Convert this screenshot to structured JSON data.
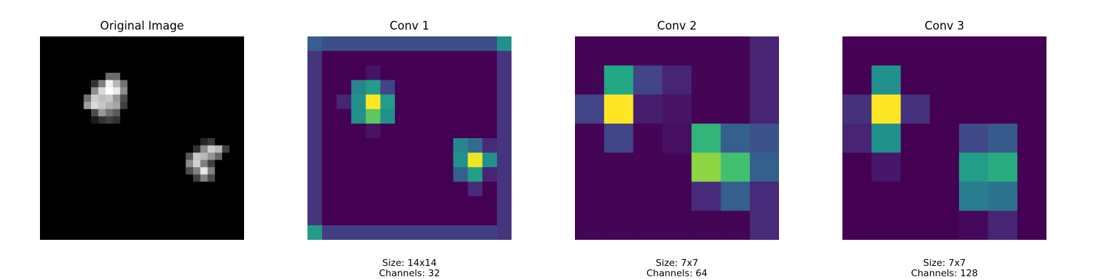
{
  "chart_data": [
    {
      "type": "heatmap",
      "title": "Original Image",
      "colormap": "gray",
      "grid": false,
      "size_label": "",
      "channels_label": "",
      "rows": 28,
      "cols": 28,
      "cells": [
        [
          5,
          9,
          0.42
        ],
        [
          5,
          10,
          0.42
        ],
        [
          6,
          7,
          0.2
        ],
        [
          6,
          8,
          0.5
        ],
        [
          6,
          9,
          0.95
        ],
        [
          6,
          10,
          0.72
        ],
        [
          6,
          11,
          0.45
        ],
        [
          7,
          7,
          0.55
        ],
        [
          7,
          8,
          0.85
        ],
        [
          7,
          9,
          1.0
        ],
        [
          7,
          10,
          0.92
        ],
        [
          7,
          11,
          0.55
        ],
        [
          8,
          6,
          0.45
        ],
        [
          8,
          7,
          0.8
        ],
        [
          8,
          8,
          0.75
        ],
        [
          8,
          9,
          0.78
        ],
        [
          8,
          10,
          0.6
        ],
        [
          8,
          11,
          0.3
        ],
        [
          9,
          6,
          0.62
        ],
        [
          9,
          7,
          0.85
        ],
        [
          9,
          8,
          0.78
        ],
        [
          9,
          9,
          0.7
        ],
        [
          9,
          10,
          0.65
        ],
        [
          9,
          11,
          0.25
        ],
        [
          10,
          7,
          0.3
        ],
        [
          10,
          8,
          0.6
        ],
        [
          10,
          9,
          0.45
        ],
        [
          10,
          10,
          0.35
        ],
        [
          11,
          7,
          0.1
        ],
        [
          11,
          8,
          0.2
        ],
        [
          11,
          9,
          0.25
        ],
        [
          11,
          10,
          0.2
        ],
        [
          14,
          22,
          0.15
        ],
        [
          14,
          23,
          0.22
        ],
        [
          15,
          21,
          0.2
        ],
        [
          15,
          22,
          0.55
        ],
        [
          15,
          23,
          0.8
        ],
        [
          15,
          24,
          0.72
        ],
        [
          15,
          25,
          0.25
        ],
        [
          16,
          20,
          0.35
        ],
        [
          16,
          21,
          0.78
        ],
        [
          16,
          22,
          0.72
        ],
        [
          16,
          23,
          0.58
        ],
        [
          16,
          24,
          0.4
        ],
        [
          17,
          20,
          0.55
        ],
        [
          17,
          21,
          0.82
        ],
        [
          17,
          22,
          0.5
        ],
        [
          17,
          23,
          0.25
        ],
        [
          18,
          20,
          0.3
        ],
        [
          18,
          21,
          0.5
        ],
        [
          18,
          22,
          0.9
        ],
        [
          18,
          23,
          0.5
        ],
        [
          19,
          21,
          0.25
        ],
        [
          19,
          22,
          0.5
        ],
        [
          19,
          23,
          0.3
        ]
      ]
    },
    {
      "type": "heatmap",
      "title": "Conv 1",
      "colormap": "viridis",
      "grid": false,
      "size_label": "Size: 14x14",
      "channels_label": "Channels: 32",
      "rows": 14,
      "cols": 14,
      "values": [
        [
          0.3,
          0.24,
          0.24,
          0.24,
          0.24,
          0.24,
          0.24,
          0.24,
          0.24,
          0.24,
          0.24,
          0.24,
          0.24,
          0.5
        ],
        [
          0.15,
          0.0,
          0.0,
          0.0,
          0.0,
          0.0,
          0.0,
          0.0,
          0.0,
          0.0,
          0.0,
          0.0,
          0.0,
          0.15
        ],
        [
          0.15,
          0.0,
          0.0,
          0.0,
          0.05,
          0.0,
          0.0,
          0.0,
          0.0,
          0.0,
          0.0,
          0.0,
          0.0,
          0.15
        ],
        [
          0.15,
          0.0,
          0.0,
          0.45,
          0.55,
          0.2,
          0.0,
          0.0,
          0.0,
          0.0,
          0.0,
          0.0,
          0.0,
          0.15
        ],
        [
          0.15,
          0.0,
          0.1,
          0.5,
          1.0,
          0.55,
          0.0,
          0.0,
          0.0,
          0.0,
          0.0,
          0.0,
          0.0,
          0.15
        ],
        [
          0.15,
          0.0,
          0.0,
          0.5,
          0.75,
          0.5,
          0.0,
          0.0,
          0.0,
          0.0,
          0.0,
          0.0,
          0.0,
          0.15
        ],
        [
          0.15,
          0.0,
          0.0,
          0.0,
          0.05,
          0.0,
          0.0,
          0.0,
          0.0,
          0.0,
          0.0,
          0.0,
          0.0,
          0.15
        ],
        [
          0.15,
          0.0,
          0.0,
          0.0,
          0.0,
          0.0,
          0.0,
          0.0,
          0.0,
          0.0,
          0.45,
          0.35,
          0.12,
          0.15
        ],
        [
          0.15,
          0.0,
          0.0,
          0.0,
          0.0,
          0.0,
          0.0,
          0.0,
          0.0,
          0.0,
          0.5,
          0.98,
          0.5,
          0.15
        ],
        [
          0.15,
          0.0,
          0.0,
          0.0,
          0.0,
          0.0,
          0.0,
          0.0,
          0.0,
          0.0,
          0.3,
          0.55,
          0.1,
          0.15
        ],
        [
          0.15,
          0.0,
          0.0,
          0.0,
          0.0,
          0.0,
          0.0,
          0.0,
          0.0,
          0.0,
          0.0,
          0.12,
          0.0,
          0.15
        ],
        [
          0.15,
          0.0,
          0.0,
          0.0,
          0.0,
          0.0,
          0.0,
          0.0,
          0.0,
          0.0,
          0.0,
          0.0,
          0.0,
          0.15
        ],
        [
          0.15,
          0.0,
          0.0,
          0.0,
          0.0,
          0.0,
          0.0,
          0.0,
          0.0,
          0.0,
          0.0,
          0.0,
          0.0,
          0.15
        ],
        [
          0.55,
          0.18,
          0.18,
          0.18,
          0.18,
          0.18,
          0.18,
          0.18,
          0.18,
          0.18,
          0.18,
          0.18,
          0.18,
          0.15
        ]
      ]
    },
    {
      "type": "heatmap",
      "title": "Conv 2",
      "colormap": "viridis",
      "grid": false,
      "size_label": "Size: 7x7",
      "channels_label": "Channels: 64",
      "rows": 7,
      "cols": 7,
      "values": [
        [
          0.01,
          0.01,
          0.01,
          0.01,
          0.01,
          0.01,
          0.1
        ],
        [
          0.01,
          0.6,
          0.2,
          0.1,
          0.01,
          0.01,
          0.1
        ],
        [
          0.2,
          1.0,
          0.08,
          0.05,
          0.01,
          0.01,
          0.1
        ],
        [
          0.01,
          0.2,
          0.01,
          0.04,
          0.65,
          0.3,
          0.25
        ],
        [
          0.01,
          0.01,
          0.01,
          0.01,
          0.83,
          0.7,
          0.3
        ],
        [
          0.01,
          0.01,
          0.01,
          0.01,
          0.12,
          0.3,
          0.12
        ],
        [
          0.01,
          0.01,
          0.01,
          0.01,
          0.01,
          0.01,
          0.12
        ]
      ]
    },
    {
      "type": "heatmap",
      "title": "Conv 3",
      "colormap": "viridis",
      "grid": false,
      "size_label": "Size: 7x7",
      "channels_label": "Channels: 128",
      "rows": 7,
      "cols": 7,
      "values": [
        [
          0.0,
          0.0,
          0.0,
          0.0,
          0.0,
          0.0,
          0.0
        ],
        [
          0.0,
          0.5,
          0.0,
          0.0,
          0.0,
          0.0,
          0.0
        ],
        [
          0.14,
          1.0,
          0.14,
          0.0,
          0.0,
          0.0,
          0.0
        ],
        [
          0.1,
          0.5,
          0.0,
          0.0,
          0.22,
          0.28,
          0.0
        ],
        [
          0.0,
          0.06,
          0.0,
          0.0,
          0.55,
          0.62,
          0.0
        ],
        [
          0.0,
          0.0,
          0.0,
          0.0,
          0.42,
          0.38,
          0.0
        ],
        [
          0.0,
          0.0,
          0.0,
          0.0,
          0.02,
          0.1,
          0.0
        ]
      ]
    }
  ]
}
